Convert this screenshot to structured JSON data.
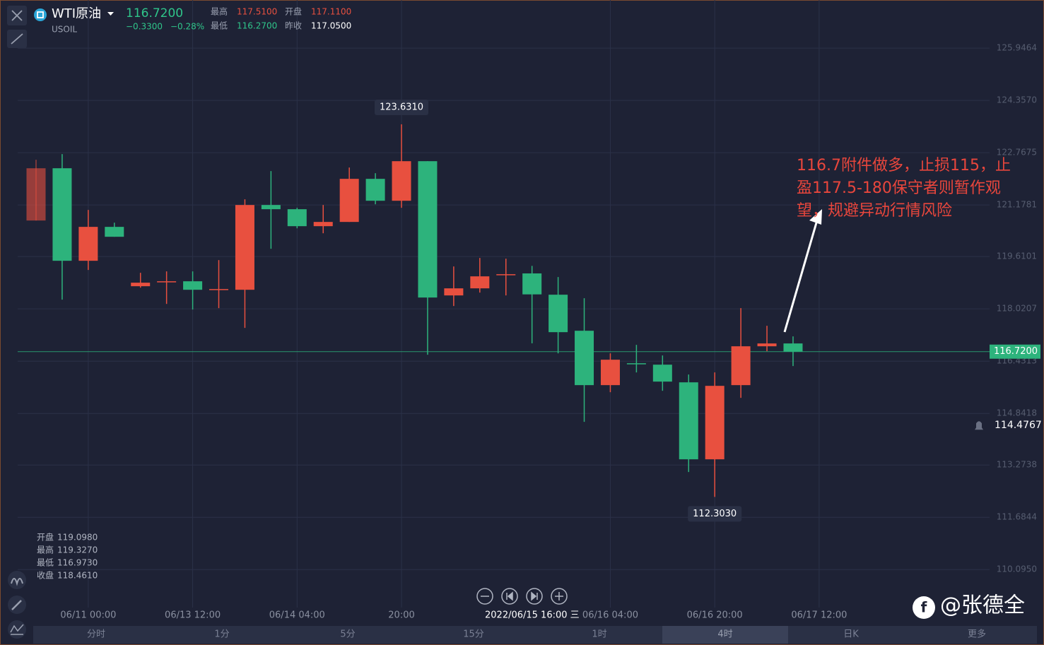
{
  "header": {
    "symbol": "WTI原油",
    "code": "USOIL",
    "price": "116.7200",
    "change": "−0.3300",
    "change_pct": "−0.28%",
    "stats": [
      {
        "label": "最高",
        "value": "117.5100"
      },
      {
        "label": "开盘",
        "value": "117.1100"
      },
      {
        "label": "最低",
        "value": "116.2700"
      },
      {
        "label": "昨收",
        "value": "117.0500"
      }
    ]
  },
  "readout": [
    {
      "label": "开盘",
      "value": "119.0980"
    },
    {
      "label": "最高",
      "value": "119.3270"
    },
    {
      "label": "最低",
      "value": "116.9730"
    },
    {
      "label": "收盘",
      "value": "118.4610"
    }
  ],
  "crosshair_label": "2022/06/15 16:00 三",
  "tabs": [
    "分时",
    "1分",
    "5分",
    "15分",
    "1时",
    "4时",
    "日K",
    "更多"
  ],
  "active_tab": "4时",
  "watermark": "@张德全",
  "chart_data": {
    "type": "candlestick",
    "categories": [
      null,
      null,
      "06/11 00:00",
      null,
      null,
      null,
      "06/13 12:00",
      null,
      null,
      null,
      "06/14 04:00",
      null,
      null,
      null,
      "20:00",
      null,
      null,
      null,
      null,
      null,
      null,
      null,
      "06/16 04:00",
      null,
      null,
      null,
      "06/16 20:00",
      null,
      null,
      null,
      "06/17 12:00"
    ],
    "open": [
      120.706,
      122.295,
      119.482,
      120.513,
      118.709,
      118.837,
      118.859,
      118.601,
      118.601,
      121.178,
      121.05,
      120.534,
      120.663,
      121.973,
      121.307,
      122.51,
      118.429,
      118.644,
      119.052,
      119.098,
      118.451,
      117.355,
      115.702,
      116.367,
      116.324,
      115.787,
      113.447,
      115.702,
      116.883,
      116.969,
      null
    ],
    "high": [
      122.553,
      122.725,
      121.028,
      120.641,
      119.117,
      119.16,
      119.16,
      119.503,
      121.35,
      122.209,
      121.093,
      121.178,
      122.317,
      122.145,
      123.631,
      122.51,
      119.31,
      119.568,
      119.546,
      119.327,
      118.988,
      118.344,
      116.668,
      116.926,
      116.604,
      116.024,
      116.088,
      118.043,
      117.506,
      117.184,
      null
    ],
    "low": [
      120.706,
      118.3,
      119.203,
      120.212,
      118.665,
      118.171,
      118.0,
      118.043,
      117.441,
      119.847,
      120.47,
      120.319,
      120.663,
      121.2,
      121.093,
      116.625,
      118.107,
      118.515,
      118.429,
      116.973,
      116.668,
      114.585,
      115.487,
      116.088,
      115.53,
      113.06,
      112.303,
      115.315,
      116.733,
      116.282,
      null
    ],
    "close": [
      122.295,
      119.482,
      120.513,
      120.212,
      118.816,
      118.859,
      118.601,
      118.623,
      121.178,
      121.05,
      120.534,
      120.663,
      121.973,
      121.307,
      122.51,
      118.365,
      118.644,
      119.009,
      119.074,
      118.461,
      117.312,
      115.702,
      116.475,
      116.346,
      115.809,
      113.447,
      115.68,
      116.883,
      116.969,
      116.72,
      null
    ],
    "up_color": "#e8503f",
    "down_color": "#2db37c",
    "ylim": [
      108.94,
      127.41
    ],
    "yticks": [
      {
        "value": 110.095,
        "label": "110.0950"
      },
      111.6844,
      113.2738,
      114.8418,
      116.4313,
      118.0207,
      119.6101,
      121.1781,
      122.7675,
      {
        "value": 124.357,
        "label": "124.3570"
      },
      125.9464
    ],
    "grid": true,
    "high_label": "123.6310",
    "low_label": "112.3030",
    "price_line": {
      "value": 116.72,
      "label": "116.7200",
      "color": "#2db37c"
    },
    "alert_line": {
      "value": 114.4767,
      "label": "114.4767"
    },
    "annotation": [
      "116.7附件做多，止损115，止",
      "盈117.5-180保守者则暂作观",
      "望，规避异动行情风险"
    ]
  }
}
